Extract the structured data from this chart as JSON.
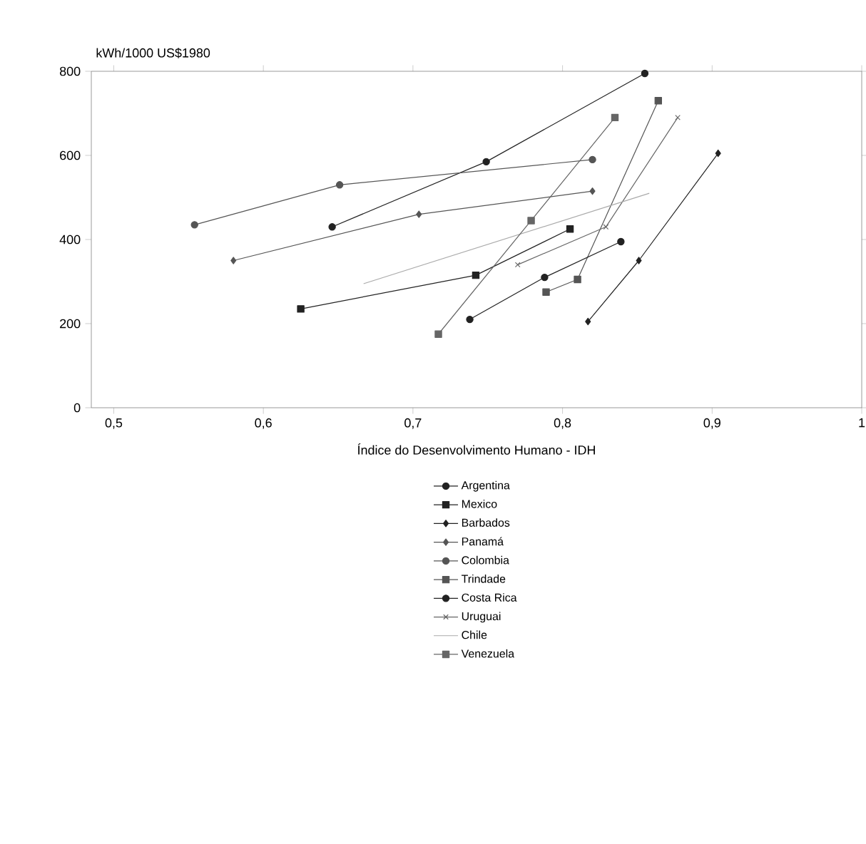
{
  "chart_data": {
    "type": "line",
    "ylabel": "kWh/1000 US$1980",
    "xlabel": "Índice do Desenvolvimento Humano - IDH",
    "xlim": [
      0.485,
      1.0
    ],
    "ylim": [
      0,
      800
    ],
    "xticks": [
      {
        "value": 0.5,
        "label": "0,5"
      },
      {
        "value": 0.6,
        "label": "0,6"
      },
      {
        "value": 0.7,
        "label": "0,7"
      },
      {
        "value": 0.8,
        "label": "0,8"
      },
      {
        "value": 0.9,
        "label": "0,9"
      },
      1
    ],
    "yticks": [
      0,
      200,
      400,
      600,
      800
    ],
    "legend": "bottom",
    "grid": false,
    "line_style": "solid",
    "series": [
      {
        "name": "Argentina",
        "color": "#222222",
        "marker": "circle",
        "x": [
          0.646,
          0.749,
          0.855
        ],
        "values": [
          430,
          585,
          795
        ]
      },
      {
        "name": "Mexico",
        "color": "#222222",
        "marker": "square",
        "x": [
          0.625,
          0.742,
          0.805
        ],
        "values": [
          235,
          315,
          425
        ]
      },
      {
        "name": "Barbados",
        "color": "#222222",
        "marker": "diamond",
        "x": [
          0.817,
          0.851,
          0.904
        ],
        "values": [
          205,
          350,
          605
        ]
      },
      {
        "name": "Panamá",
        "color": "#555555",
        "marker": "diamond",
        "x": [
          0.58,
          0.704,
          0.82
        ],
        "values": [
          350,
          460,
          515
        ]
      },
      {
        "name": "Colombia",
        "color": "#555555",
        "marker": "circle",
        "x": [
          0.554,
          0.651,
          0.82
        ],
        "values": [
          435,
          530,
          590
        ]
      },
      {
        "name": "Trindade",
        "color": "#555555",
        "marker": "square",
        "x": [
          0.789,
          0.81,
          0.864
        ],
        "values": [
          275,
          305,
          730
        ]
      },
      {
        "name": "Costa Rica",
        "color": "#222222",
        "marker": "circle",
        "x": [
          0.738,
          0.788,
          0.839
        ],
        "values": [
          210,
          310,
          395
        ]
      },
      {
        "name": "Uruguai",
        "color": "#666666",
        "marker": "cross",
        "x": [
          0.77,
          0.829,
          0.877
        ],
        "values": [
          340,
          430,
          690
        ]
      },
      {
        "name": "Chile",
        "color": "#aaaaaa",
        "marker": "none",
        "x": [
          0.667,
          0.858
        ],
        "values": [
          295,
          510
        ]
      },
      {
        "name": "Venezuela",
        "color": "#666666",
        "marker": "square",
        "x": [
          0.717,
          0.779,
          0.835
        ],
        "values": [
          175,
          445,
          690
        ]
      }
    ]
  }
}
